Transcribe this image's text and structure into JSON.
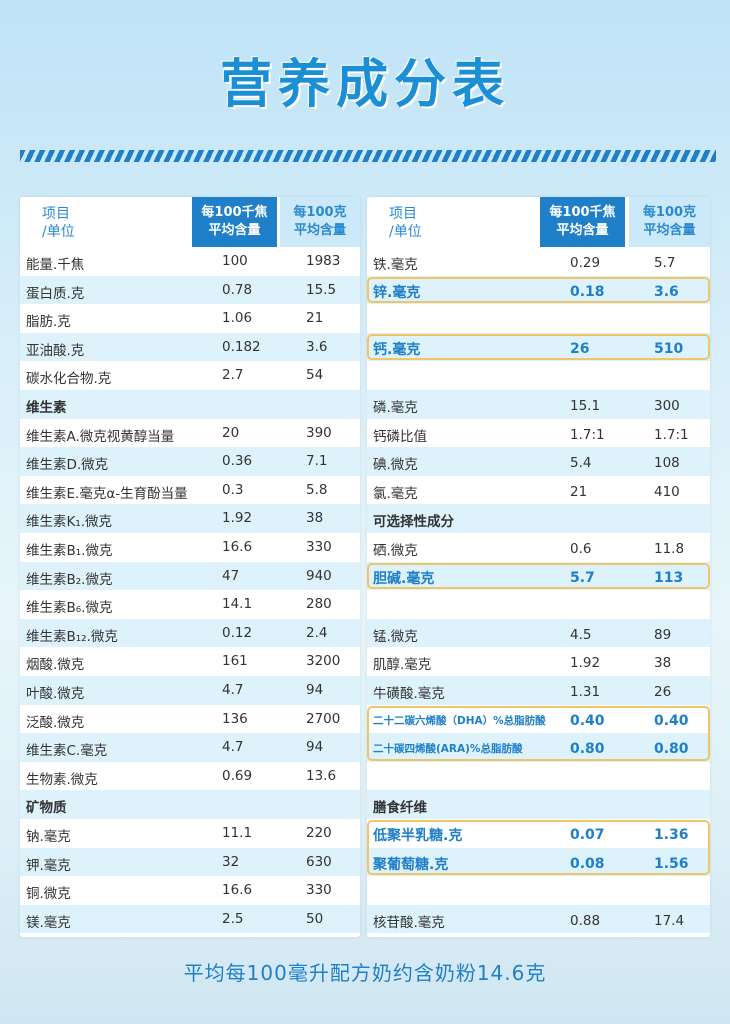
{
  "title": "营养成分表",
  "footer": "平均每100毫升配方奶约含奶粉14.6克",
  "header": {
    "item_label": "项目\n/单位",
    "col1": "每100千焦\n平均含量",
    "col2": "每100克\n平均含量"
  },
  "left_rows": [
    {
      "name": "能量.千焦",
      "v1": "100",
      "v2": "1983"
    },
    {
      "name": "蛋白质.克",
      "v1": "0.78",
      "v2": "15.5"
    },
    {
      "name": "脂肪.克",
      "v1": "1.06",
      "v2": "21"
    },
    {
      "name": "亚油酸.克",
      "v1": "0.182",
      "v2": "3.6"
    },
    {
      "name": "碳水化合物.克",
      "v1": "2.7",
      "v2": "54"
    },
    {
      "name": "维生素",
      "v1": "",
      "v2": ""
    },
    {
      "name": "维生素A.微克视黄醇当量",
      "v1": "20",
      "v2": "390"
    },
    {
      "name": "维生素D.微克",
      "v1": "0.36",
      "v2": "7.1"
    },
    {
      "name": "维生素E.毫克α-生育酚当量",
      "v1": "0.3",
      "v2": "5.8"
    },
    {
      "name": "维生素K₁.微克",
      "v1": "1.92",
      "v2": "38"
    },
    {
      "name": "维生素B₁.微克",
      "v1": "16.6",
      "v2": "330"
    },
    {
      "name": "维生素B₂.微克",
      "v1": "47",
      "v2": "940"
    },
    {
      "name": "维生素B₆.微克",
      "v1": "14.1",
      "v2": "280"
    },
    {
      "name": "维生素B₁₂.微克",
      "v1": "0.12",
      "v2": "2.4"
    },
    {
      "name": "烟酸.微克",
      "v1": "161",
      "v2": "3200"
    },
    {
      "name": "叶酸.微克",
      "v1": "4.7",
      "v2": "94"
    },
    {
      "name": "泛酸.微克",
      "v1": "136",
      "v2": "2700"
    },
    {
      "name": "维生素C.毫克",
      "v1": "4.7",
      "v2": "94"
    },
    {
      "name": "生物素.微克",
      "v1": "0.69",
      "v2": "13.6"
    },
    {
      "name": "矿物质",
      "v1": "",
      "v2": ""
    },
    {
      "name": "钠.毫克",
      "v1": "11.1",
      "v2": "220"
    },
    {
      "name": "钾.毫克",
      "v1": "32",
      "v2": "630"
    },
    {
      "name": "铜.微克",
      "v1": "16.6",
      "v2": "330"
    },
    {
      "name": "镁.毫克",
      "v1": "2.5",
      "v2": "50"
    }
  ],
  "right_rows": [
    {
      "name": "铁.毫克",
      "v1": "0.29",
      "v2": "5.7"
    },
    {
      "name": "锌.毫克",
      "v1": "0.18",
      "v2": "3.6"
    },
    {
      "name": "",
      "v1": "",
      "v2": ""
    },
    {
      "name": "钙.毫克",
      "v1": "26",
      "v2": "510"
    },
    {
      "name": "",
      "v1": "",
      "v2": ""
    },
    {
      "name": "磷.毫克",
      "v1": "15.1",
      "v2": "300"
    },
    {
      "name": "钙磷比值",
      "v1": "1.7:1",
      "v2": "1.7:1"
    },
    {
      "name": "碘.微克",
      "v1": "5.4",
      "v2": "108"
    },
    {
      "name": "氯.毫克",
      "v1": "21",
      "v2": "410"
    },
    {
      "name": "可选择性成分",
      "v1": "",
      "v2": ""
    },
    {
      "name": "硒.微克",
      "v1": "0.6",
      "v2": "11.8"
    },
    {
      "name": "胆碱.毫克",
      "v1": "5.7",
      "v2": "113"
    },
    {
      "name": "",
      "v1": "",
      "v2": ""
    },
    {
      "name": "锰.微克",
      "v1": "4.5",
      "v2": "89"
    },
    {
      "name": "肌醇.毫克",
      "v1": "1.92",
      "v2": "38"
    },
    {
      "name": "牛磺酸.毫克",
      "v1": "1.31",
      "v2": "26"
    },
    {
      "name": "二十二碳六烯酸（DHA）%总脂肪酸",
      "v1": "0.40",
      "v2": "0.40"
    },
    {
      "name": "二十碳四烯酸(ARA)%总脂肪酸",
      "v1": "0.80",
      "v2": "0.80"
    },
    {
      "name": "",
      "v1": "",
      "v2": ""
    },
    {
      "name": "膳食纤维",
      "v1": "",
      "v2": ""
    },
    {
      "name": "低聚半乳糖.克",
      "v1": "0.07",
      "v2": "1.36"
    },
    {
      "name": "聚葡萄糖.克",
      "v1": "0.08",
      "v2": "1.56"
    },
    {
      "name": "",
      "v1": "",
      "v2": ""
    },
    {
      "name": "核苷酸.毫克",
      "v1": "0.88",
      "v2": "17.4"
    }
  ],
  "colors": {
    "accent": "#1f7fc8",
    "highlight_border": "#f0c56a",
    "row_alt": "#def2fb"
  }
}
